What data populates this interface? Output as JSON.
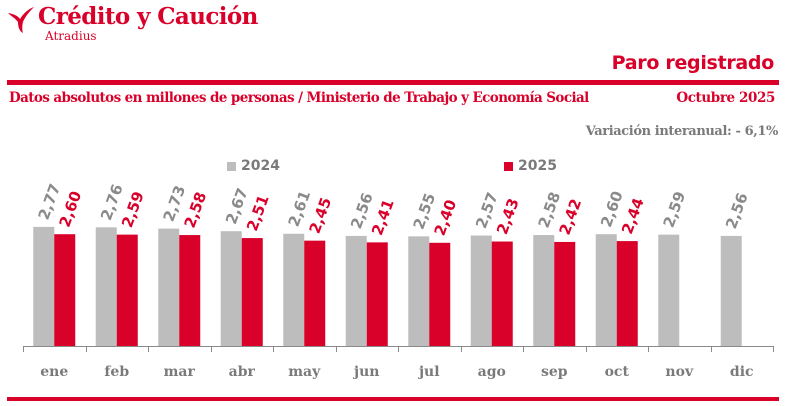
{
  "header": {
    "brand": "Crédito y Caución",
    "brand_sub": "Atradius",
    "logo_icon": "atradius-swoosh-icon",
    "title": "Paro registrado",
    "subtitle": "Datos absolutos en millones de personas / Ministerio de Trabajo y Economía Social",
    "date": "Octubre 2025",
    "variation": "Variación interanual: - 6,1%"
  },
  "colors": {
    "accent": "#d9002a",
    "series_2024": "#bdbdbd",
    "series_2025": "#d9002a",
    "text_gray": "#7a7a7a",
    "axis": "#8a8a8a"
  },
  "legend": [
    {
      "label": "2024",
      "color": "#bdbdbd"
    },
    {
      "label": "2025",
      "color": "#d9002a"
    }
  ],
  "chart_data": {
    "type": "bar",
    "title": "Paro registrado",
    "xlabel": "",
    "ylabel": "Millones de personas",
    "categories": [
      "ene",
      "feb",
      "mar",
      "abr",
      "may",
      "jun",
      "jul",
      "ago",
      "sep",
      "oct",
      "nov",
      "dic"
    ],
    "series": [
      {
        "name": "2024",
        "color": "#bdbdbd",
        "values": [
          2.77,
          2.76,
          2.73,
          2.67,
          2.61,
          2.56,
          2.55,
          2.57,
          2.58,
          2.6,
          2.59,
          2.56
        ],
        "labels": [
          "2,77",
          "2,76",
          "2,73",
          "2,67",
          "2,61",
          "2,56",
          "2,55",
          "2,57",
          "2,58",
          "2,60",
          "2,59",
          "2,56"
        ]
      },
      {
        "name": "2025",
        "color": "#d9002a",
        "values": [
          2.6,
          2.59,
          2.58,
          2.51,
          2.45,
          2.41,
          2.4,
          2.43,
          2.42,
          2.44,
          null,
          null
        ],
        "labels": [
          "2,60",
          "2,59",
          "2,58",
          "2,51",
          "2,45",
          "2,41",
          "2,40",
          "2,43",
          "2,42",
          "2,44",
          null,
          null
        ]
      }
    ],
    "ylim": [
      0,
      2.8
    ],
    "grid": false,
    "legend_position": "top",
    "annotations": [
      "Variación interanual: - 6,1%"
    ]
  }
}
